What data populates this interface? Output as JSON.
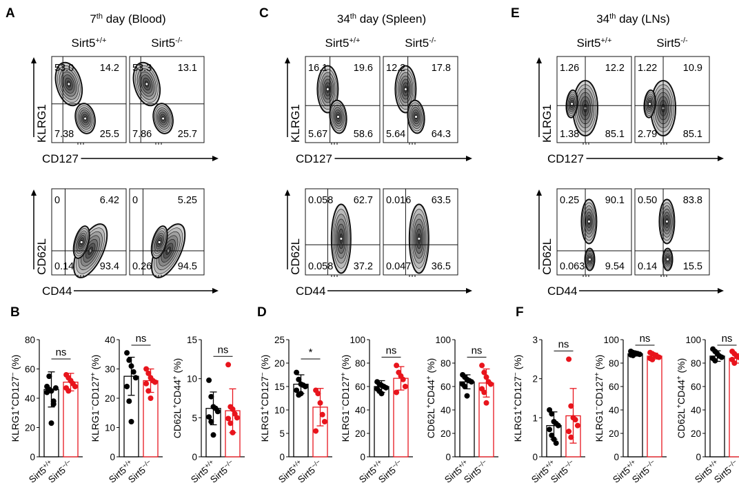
{
  "colors": {
    "wt": "#000000",
    "ko": "#e8141c",
    "contour_light": "#cfcfcf",
    "contour_dark": "#111111"
  },
  "flow_panels": [
    {
      "letter": "A",
      "title_prefix": "7",
      "title_sup": "th",
      "title_suffix": " day (Blood)",
      "genotypes": [
        {
          "base": "Sirt5",
          "sup": "+/+"
        },
        {
          "base": "Sirt5",
          "sup": "-/-"
        }
      ],
      "top": {
        "y_label": "KLRG1",
        "x_label": "CD127",
        "quadrants": [
          [
            "53.0",
            "14.2",
            "7.38",
            "25.5"
          ],
          [
            "53.3",
            "13.1",
            "7.86",
            "25.7"
          ]
        ]
      },
      "bottom": {
        "y_label": "CD62L",
        "x_label": "CD44",
        "quadrants": [
          [
            "0",
            "6.42",
            "0.14",
            "93.4"
          ],
          [
            "0",
            "5.25",
            "0.26",
            "94.5"
          ]
        ]
      }
    },
    {
      "letter": "C",
      "title_prefix": "34",
      "title_sup": "th",
      "title_suffix": " day (Spleen)",
      "genotypes": [
        {
          "base": "Sirt5",
          "sup": "+/+"
        },
        {
          "base": "Sirt5",
          "sup": "-/-"
        }
      ],
      "top": {
        "y_label": "KLRG1",
        "x_label": "CD127",
        "quadrants": [
          [
            "16.1",
            "19.6",
            "5.67",
            "58.6"
          ],
          [
            "12.2",
            "17.8",
            "5.64",
            "64.3"
          ]
        ]
      },
      "bottom": {
        "y_label": "CD62L",
        "x_label": "CD44",
        "quadrants": [
          [
            "0.058",
            "62.7",
            "0.058",
            "37.2"
          ],
          [
            "0.016",
            "63.5",
            "0.047",
            "36.5"
          ]
        ]
      }
    },
    {
      "letter": "E",
      "title_prefix": "34",
      "title_sup": "th",
      "title_suffix": " day (LNs)",
      "genotypes": [
        {
          "base": "Sirt5",
          "sup": "+/+"
        },
        {
          "base": "Sirt5",
          "sup": "-/-"
        }
      ],
      "top": {
        "y_label": "KLRG1",
        "x_label": "CD127",
        "quadrants": [
          [
            "1.26",
            "12.2",
            "1.38",
            "85.1"
          ],
          [
            "1.22",
            "10.9",
            "2.79",
            "85.1"
          ]
        ]
      },
      "bottom": {
        "y_label": "CD62L",
        "x_label": "CD44",
        "quadrants": [
          [
            "0.25",
            "90.1",
            "0.063",
            "9.54"
          ],
          [
            "0.50",
            "83.8",
            "0.14",
            "15.5"
          ]
        ]
      }
    }
  ],
  "chart_data": [
    {
      "type": "bar",
      "panel": "B",
      "ylabel": "KLRG1+CD127- (%)",
      "ylim": [
        0,
        80
      ],
      "yticks": [
        0,
        20,
        40,
        60,
        80
      ],
      "categories": [
        "Sirt5+/+",
        "Sirt5-/-"
      ],
      "means": [
        46,
        51
      ],
      "sd": [
        12,
        6
      ],
      "significance": "ns",
      "points": [
        [
          48,
          46,
          45,
          36,
          47,
          44,
          55,
          23,
          38
        ],
        [
          56,
          54,
          52,
          50,
          48,
          47,
          45,
          52
        ]
      ]
    },
    {
      "type": "bar",
      "panel": "B",
      "ylabel": "KLRG1-CD127+ (%)",
      "ylim": [
        0,
        40
      ],
      "yticks": [
        0,
        10,
        20,
        30,
        40
      ],
      "categories": [
        "Sirt5+/+",
        "Sirt5-/-"
      ],
      "means": [
        27.5,
        26
      ],
      "sd": [
        6.5,
        4
      ],
      "significance": "ns",
      "points": [
        [
          35.5,
          33,
          31,
          29,
          27,
          24,
          19,
          12
        ],
        [
          30,
          28.5,
          27,
          26,
          25.5,
          25,
          22.5,
          20
        ]
      ]
    },
    {
      "type": "bar",
      "panel": "B",
      "ylabel": "CD62L+CD44+ (%)",
      "ylim": [
        0,
        15
      ],
      "yticks": [
        0,
        5,
        10,
        15
      ],
      "categories": [
        "Sirt5+/+",
        "Sirt5-/-"
      ],
      "means": [
        6.2,
        5.9
      ],
      "sd": [
        2.1,
        2.8
      ],
      "significance": "ns",
      "points": [
        [
          9.8,
          7.7,
          6.4,
          6.2,
          5.8,
          5.1,
          4.5,
          2.8
        ],
        [
          11.8,
          6.4,
          6.1,
          5.5,
          5.0,
          4.9,
          4.3,
          3.1
        ]
      ]
    },
    {
      "type": "bar",
      "panel": "D",
      "ylabel": "KLRG1+CD127- (%)",
      "ylim": [
        0,
        25
      ],
      "yticks": [
        0,
        5,
        10,
        15,
        20,
        25
      ],
      "categories": [
        "Sirt5+/+",
        "Sirt5-/-"
      ],
      "means": [
        15.5,
        10.6
      ],
      "sd": [
        2,
        4
      ],
      "significance": "*",
      "points": [
        [
          18,
          16.5,
          15.5,
          15.3,
          15,
          14.2,
          13.2,
          13.5
        ],
        [
          14.2,
          13.5,
          11.5,
          9,
          7.5,
          5.5
        ]
      ]
    },
    {
      "type": "bar",
      "panel": "D",
      "ylabel": "KLRG1-CD127+ (%)",
      "ylim": [
        0,
        100
      ],
      "yticks": [
        0,
        20,
        40,
        60,
        80,
        100
      ],
      "categories": [
        "Sirt5+/+",
        "Sirt5-/-"
      ],
      "means": [
        60,
        67
      ],
      "sd": [
        5,
        10
      ],
      "significance": "ns",
      "points": [
        [
          64,
          62,
          61,
          60,
          59,
          58,
          56,
          54
        ],
        [
          78,
          72,
          69,
          66,
          60,
          55
        ]
      ]
    },
    {
      "type": "bar",
      "panel": "D",
      "ylabel": "CD62L+CD44+ (%)",
      "ylim": [
        0,
        100
      ],
      "yticks": [
        0,
        20,
        40,
        60,
        80,
        100
      ],
      "categories": [
        "Sirt5+/+",
        "Sirt5-/-"
      ],
      "means": [
        64,
        63
      ],
      "sd": [
        6,
        12
      ],
      "significance": "ns",
      "points": [
        [
          70,
          68,
          66,
          65,
          64,
          62,
          60,
          52
        ],
        [
          78,
          72,
          68,
          64,
          62,
          58,
          55,
          46
        ]
      ]
    },
    {
      "type": "bar",
      "panel": "F",
      "ylabel": "KLRG1+CD127- (%)",
      "ylim": [
        0,
        3
      ],
      "yticks": [
        0,
        1,
        2,
        3
      ],
      "categories": [
        "Sirt5+/+",
        "Sirt5-/-"
      ],
      "means": [
        0.8,
        1.05
      ],
      "sd": [
        0.35,
        0.7
      ],
      "significance": "ns",
      "points": [
        [
          1.2,
          1.1,
          0.9,
          0.85,
          0.8,
          0.7,
          0.55,
          0.45,
          0.35
        ],
        [
          2.5,
          1.3,
          1.0,
          0.95,
          0.8,
          0.65,
          0.5
        ]
      ]
    },
    {
      "type": "bar",
      "panel": "F",
      "ylabel": "KLRG1-CD127+ (%)",
      "ylim": [
        0,
        100
      ],
      "yticks": [
        0,
        20,
        40,
        60,
        80,
        100
      ],
      "categories": [
        "Sirt5+/+",
        "Sirt5-/-"
      ],
      "means": [
        88,
        86
      ],
      "sd": [
        2,
        2.5
      ],
      "significance": "ns",
      "points": [
        [
          90,
          89,
          88.5,
          88,
          87.5,
          87,
          86.5
        ],
        [
          89,
          88,
          87,
          86,
          85,
          84,
          83
        ]
      ]
    },
    {
      "type": "bar",
      "panel": "F",
      "ylabel": "CD62L+CD44+ (%)",
      "ylim": [
        0,
        100
      ],
      "yticks": [
        0,
        20,
        40,
        60,
        80,
        100
      ],
      "categories": [
        "Sirt5+/+",
        "Sirt5-/-"
      ],
      "means": [
        86,
        84
      ],
      "sd": [
        4.5,
        4
      ],
      "significance": "ns",
      "points": [
        [
          92,
          90,
          88,
          86,
          85,
          84,
          82
        ],
        [
          90,
          88,
          86,
          85,
          84,
          83,
          80
        ]
      ]
    }
  ]
}
